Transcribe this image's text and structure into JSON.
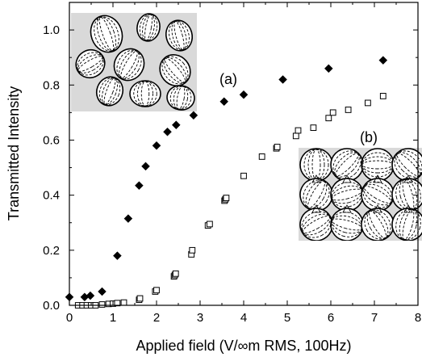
{
  "chart_data": {
    "type": "scatter",
    "xlabel": "Applied field (V/∞m RMS, 100Hz)",
    "ylabel": "Transmitted Intensity",
    "xlim": [
      0,
      8
    ],
    "ylim": [
      0,
      1.1
    ],
    "xticks": [
      "0",
      "1",
      "2",
      "3",
      "4",
      "5",
      "6",
      "7",
      "8"
    ],
    "yticks": [
      "0.0",
      "0.2",
      "0.4",
      "0.6",
      "0.8",
      "1.0"
    ],
    "grid": false,
    "series": [
      {
        "marker": "filled-diamond",
        "color": "#000000",
        "x": [
          0.0,
          0.35,
          0.48,
          0.75,
          1.1,
          1.35,
          1.6,
          1.75,
          2.0,
          2.25,
          2.45,
          2.85,
          3.55,
          4.0,
          4.9,
          5.95,
          7.2
        ],
        "y": [
          0.03,
          0.03,
          0.035,
          0.05,
          0.18,
          0.315,
          0.435,
          0.505,
          0.58,
          0.63,
          0.655,
          0.69,
          0.74,
          0.765,
          0.82,
          0.86,
          0.89
        ]
      },
      {
        "marker": "open-square",
        "color": "#000000",
        "x": [
          0.2,
          0.3,
          0.4,
          0.5,
          0.6,
          0.75,
          0.9,
          1.0,
          1.1,
          1.25,
          1.6,
          1.62,
          1.97,
          2.0,
          2.4,
          2.42,
          2.44,
          2.8,
          2.82,
          3.18,
          3.22,
          3.56,
          3.58,
          3.6,
          4.0,
          4.42,
          4.75,
          4.77,
          5.2,
          5.25,
          5.6,
          5.95,
          6.05,
          6.4,
          6.85,
          7.2
        ],
        "y": [
          0.0,
          0.0,
          0.0,
          0.0,
          0.0,
          0.003,
          0.005,
          0.006,
          0.008,
          0.01,
          0.02,
          0.025,
          0.05,
          0.055,
          0.105,
          0.11,
          0.115,
          0.185,
          0.2,
          0.29,
          0.295,
          0.38,
          0.385,
          0.39,
          0.47,
          0.54,
          0.57,
          0.575,
          0.615,
          0.635,
          0.645,
          0.68,
          0.7,
          0.71,
          0.735,
          0.76
        ]
      }
    ],
    "annotations": [
      "(a)",
      "(b)"
    ]
  }
}
